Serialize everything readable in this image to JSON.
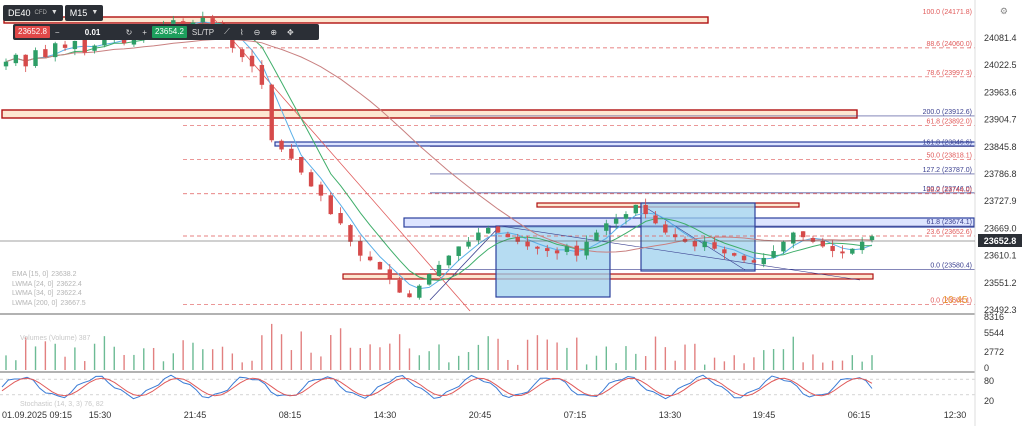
{
  "toolbar": {
    "symbol": "DE40",
    "symbol_type": "CFD",
    "timeframe": "M15"
  },
  "trade_panel": {
    "sell_price": "23652.8",
    "minus": "−",
    "quantity": "0.01",
    "plus": "+",
    "buy_price": "23654.2",
    "sltp_label": "SL/TP"
  },
  "indicators": [
    {
      "label": "EMA [15, 0]",
      "value": "23638.2"
    },
    {
      "label": "LWMA [24, 0]",
      "value": "23622.4"
    },
    {
      "label": "LWMA [34, 0]",
      "value": "23622.4"
    },
    {
      "label": "LWMA [200, 0]",
      "value": "23667.5"
    }
  ],
  "colors": {
    "up": "#2e9e67",
    "down": "#d64a4a",
    "ema": "#5bb0e8",
    "lwma24": "#3fae6a",
    "lwma200": "#c98080",
    "fib_red": "#e05a5a",
    "fib_blue": "#3a3f8f",
    "zone_fill": "#9ed0ee",
    "zone_stroke": "#2b3f9c",
    "rect_red": "#b01010",
    "rect_fill": "#fde7d1",
    "stoch_k": "#3a7bd5",
    "stoch_d": "#e05a5a"
  },
  "chart_data": {
    "type": "candlestick",
    "symbol": "DE40",
    "timeframe": "M15",
    "y_ticks": [
      "24081.4",
      "24022.5",
      "23963.6",
      "23904.7",
      "23845.8",
      "23786.8",
      "23727.9",
      "23669.0",
      "23610.1",
      "23551.2",
      "23492.3"
    ],
    "last_price": "23652.8",
    "x_ticks": [
      "01.09.2025 09:15",
      "15:30",
      "21:45",
      "08:15",
      "14:30",
      "20:45",
      "07:15",
      "13:30",
      "19:45",
      "06:15",
      "12:30"
    ],
    "fib_levels": [
      {
        "label": "88.6 (24060.0)",
        "price": 24060.0,
        "color": "red"
      },
      {
        "label": "78.6 (23997.3)",
        "price": 23997.3,
        "color": "red"
      },
      {
        "label": "200.0 (23912.6)",
        "price": 23912.6,
        "color": "blue"
      },
      {
        "label": "61.8 (23892.0)",
        "price": 23892.0,
        "color": "red"
      },
      {
        "label": "161.8 (23846.6)",
        "price": 23846.6,
        "color": "blue"
      },
      {
        "label": "50.0 (23818.1)",
        "price": 23818.1,
        "color": "red"
      },
      {
        "label": "127.2 (23787.0)",
        "price": 23787.0,
        "color": "blue"
      },
      {
        "label": "100.0 (23746.0)",
        "price": 23746.0,
        "color": "blue"
      },
      {
        "label": "38.2 (23744.0)",
        "price": 23744.0,
        "color": "red"
      },
      {
        "label": "61.8 (23674.1)",
        "price": 23674.1,
        "color": "blue"
      },
      {
        "label": "23.6 (23652.6)",
        "price": 23652.6,
        "color": "red"
      },
      {
        "label": "0.0 (23580.4)",
        "price": 23580.4,
        "color": "blue"
      },
      {
        "label": "0.0 (23504.1)",
        "price": 23504.1,
        "color": "red"
      }
    ],
    "fib_top_label": "100.0 (24171.8)",
    "countdown": "10:45",
    "volume_ticks": [
      "8316",
      "5544",
      "2772",
      "0"
    ],
    "stoch_ticks": [
      "80",
      "20"
    ],
    "stoch_label": "Stochastic (14, 3, 3) 76, 82",
    "volume_label": "Volumes (Volume) 387",
    "close_series": [
      24030,
      24045,
      24020,
      24055,
      24040,
      24070,
      24060,
      24075,
      24050,
      24065,
      24080,
      24090,
      24070,
      24085,
      24100,
      24095,
      24110,
      24120,
      24105,
      24115,
      24125,
      24110,
      24100,
      24060,
      24040,
      24020,
      23980,
      23860,
      23840,
      23820,
      23790,
      23760,
      23740,
      23700,
      23680,
      23640,
      23610,
      23600,
      23580,
      23560,
      23530,
      23520,
      23545,
      23570,
      23590,
      23610,
      23630,
      23640,
      23660,
      23670,
      23660,
      23650,
      23640,
      23630,
      23625,
      23620,
      23615,
      23630,
      23610,
      23640,
      23660,
      23680,
      23690,
      23700,
      23720,
      23700,
      23680,
      23660,
      23650,
      23640,
      23630,
      23640,
      23625,
      23615,
      23610,
      23600,
      23595,
      23605,
      23620,
      23640,
      23660,
      23650,
      23640,
      23630,
      23620,
      23615,
      23625,
      23640,
      23652
    ]
  }
}
